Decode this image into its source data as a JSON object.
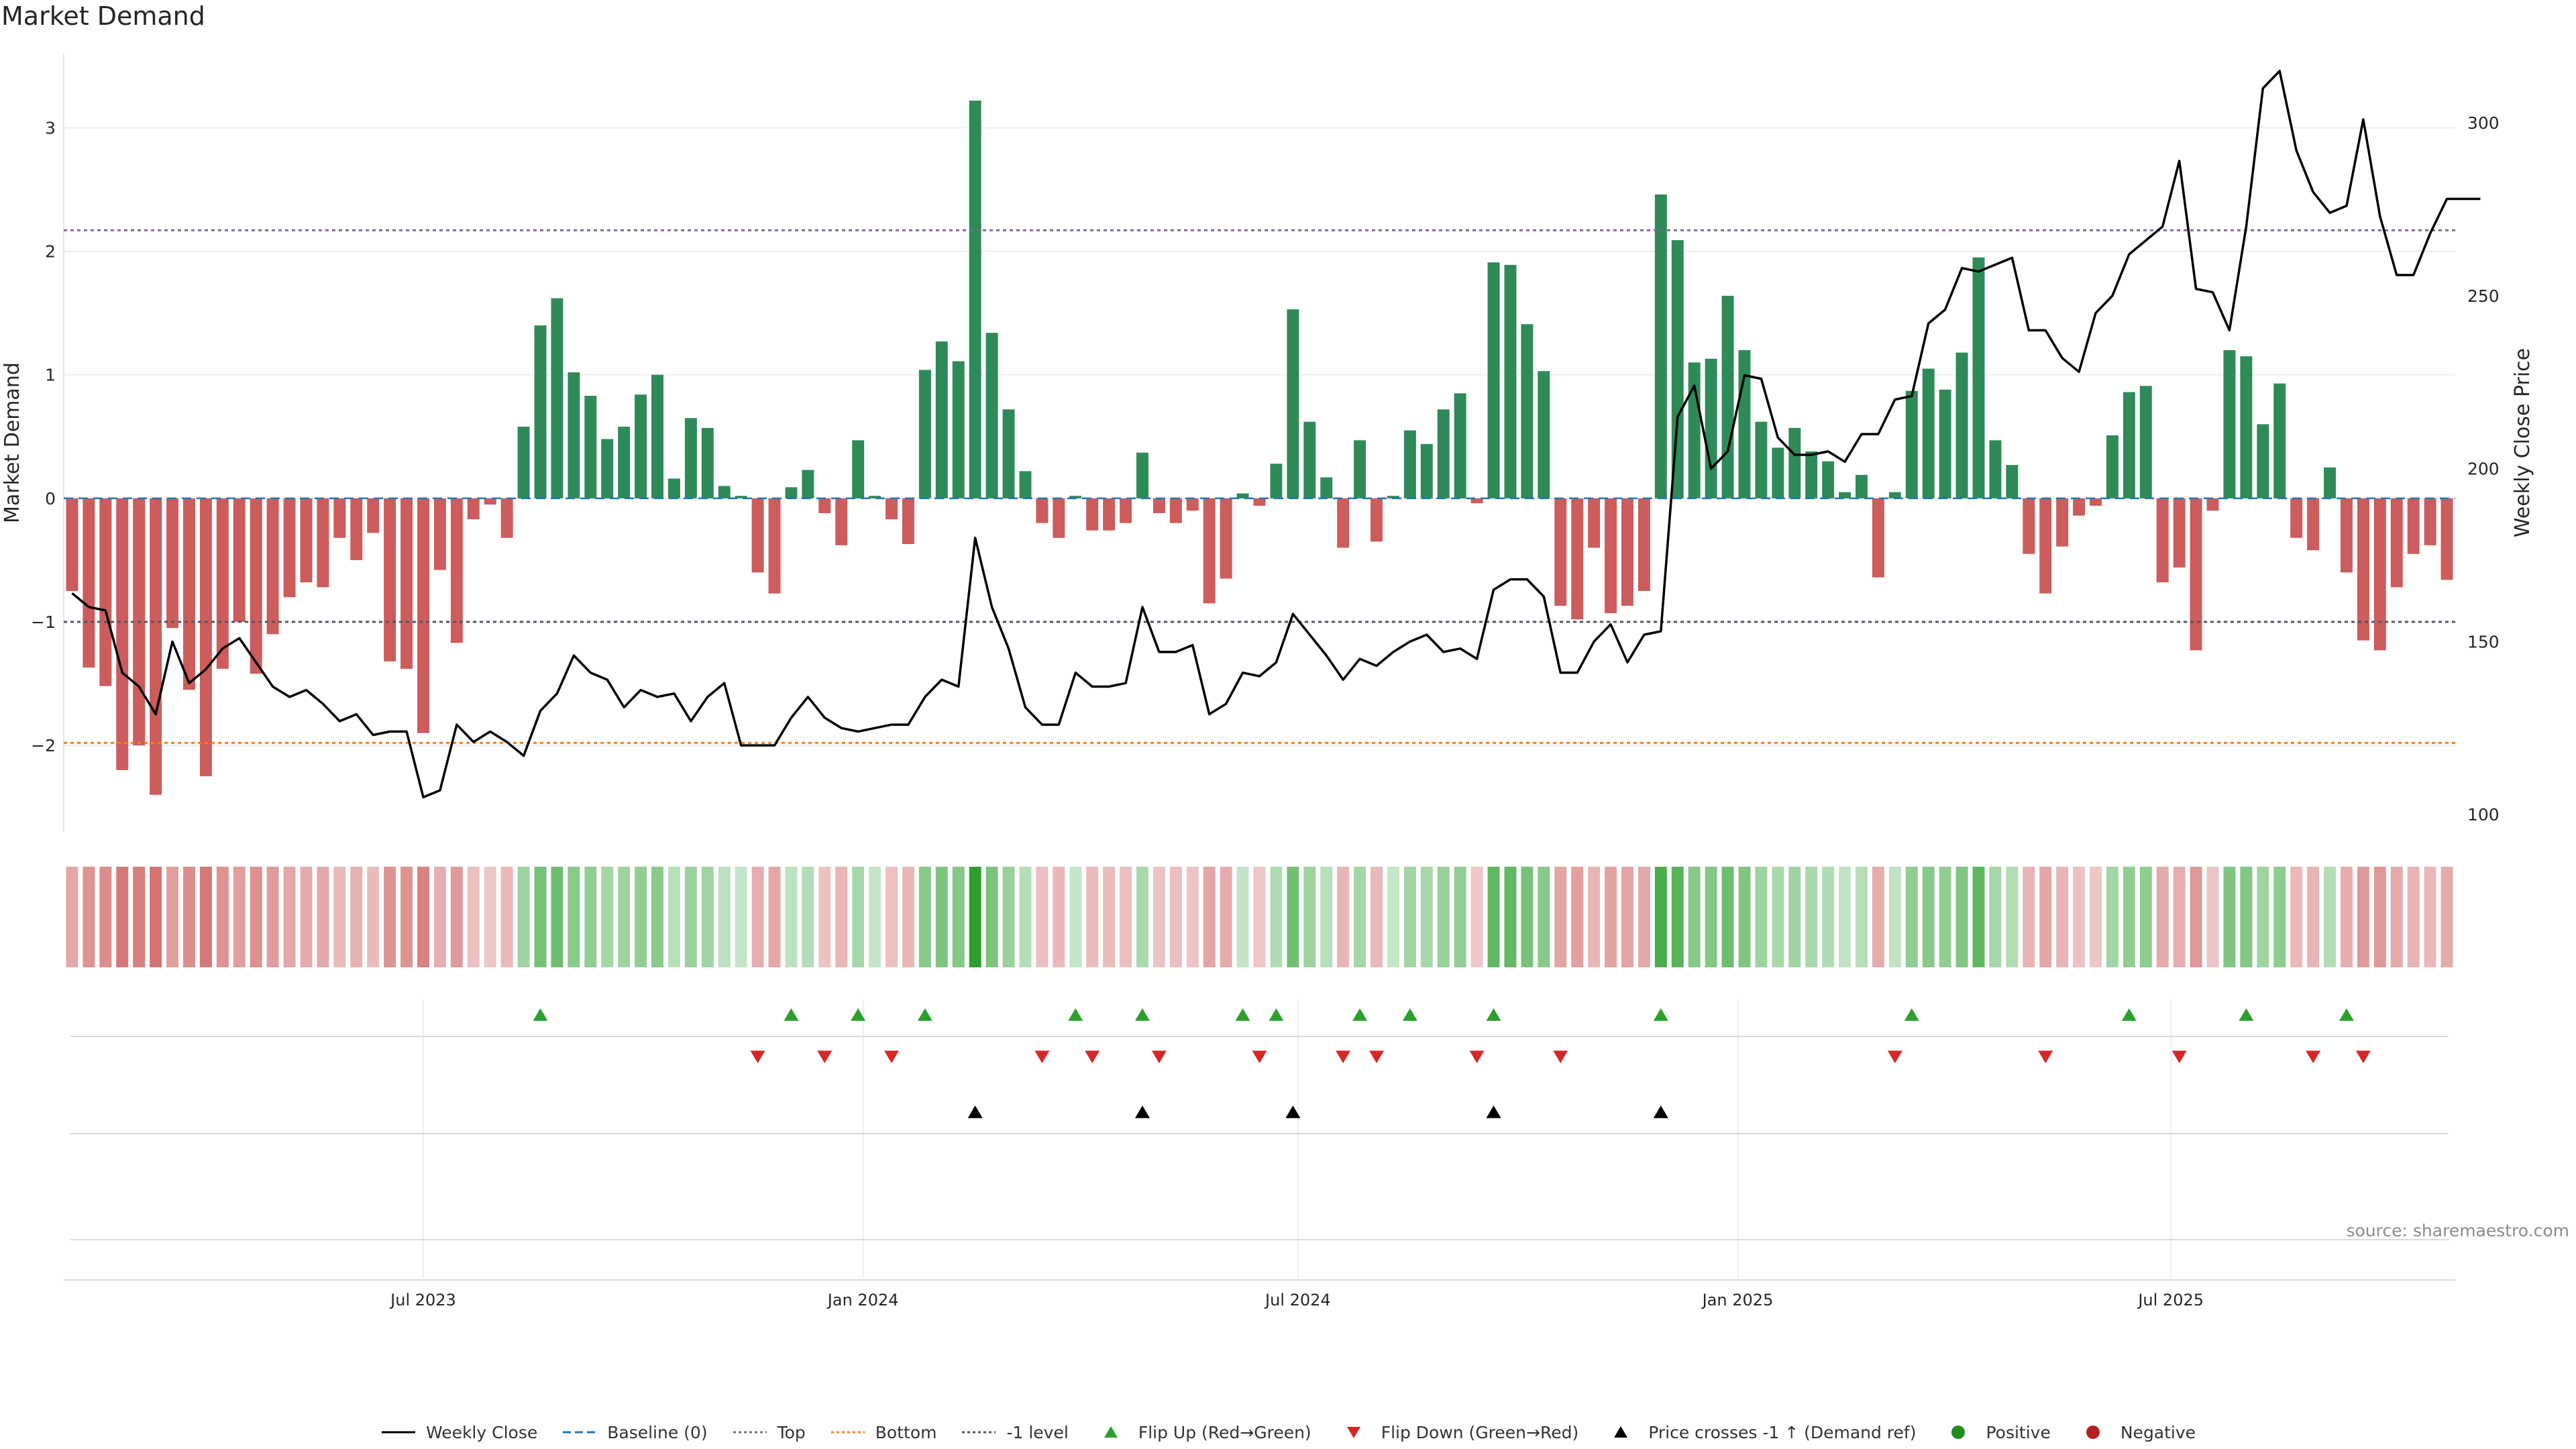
{
  "title": "Market Demand",
  "source": "source: sharemaestro.com",
  "colors": {
    "green": "#2e8b57",
    "red": "#cd5c5c",
    "price": "#000000",
    "baseline": "#1f77b4",
    "top": "#8064a2",
    "bottom": "#ff7f0e",
    "minus1": "#555566",
    "flip_up": "#2ca02c",
    "flip_down": "#d62728",
    "cross": "#000000"
  },
  "chart_data": {
    "type": "bar",
    "title": "Market Demand",
    "ylabel": "Market Demand",
    "y2label": "Weekly Close Price",
    "ylim": [
      -2.7,
      3.6
    ],
    "y2lim": [
      95,
      320
    ],
    "yticks": [
      {
        "v": 3,
        "label": "3"
      },
      {
        "v": 2,
        "label": "2"
      },
      {
        "v": 1,
        "label": "1"
      },
      {
        "v": 0,
        "label": "0"
      },
      {
        "v": -1,
        "label": "−1"
      },
      {
        "v": -2,
        "label": "−2"
      }
    ],
    "y2ticks": [
      {
        "v": 300,
        "label": "300"
      },
      {
        "v": 250,
        "label": "250"
      },
      {
        "v": 200,
        "label": "200"
      },
      {
        "v": 150,
        "label": "150"
      },
      {
        "v": 100,
        "label": "100"
      }
    ],
    "xticks": [
      {
        "i": 21,
        "label": "Jul 2023"
      },
      {
        "i": 47.3,
        "label": "Jan 2024"
      },
      {
        "i": 73.3,
        "label": "Jul 2024"
      },
      {
        "i": 99.6,
        "label": "Jan 2025"
      },
      {
        "i": 125.5,
        "label": "Jul 2025"
      }
    ],
    "reference_lines": [
      {
        "name": "Top",
        "value": 2.17
      },
      {
        "name": "Bottom",
        "value": -1.98
      },
      {
        "name": "-1 level",
        "value": -1.0
      }
    ],
    "demand": [
      -0.75,
      -1.37,
      -1.52,
      -2.2,
      -2.0,
      -2.4,
      -1.05,
      -1.55,
      -2.25,
      -1.38,
      -1.0,
      -1.42,
      -1.1,
      -0.8,
      -0.68,
      -0.72,
      -0.32,
      -0.5,
      -0.28,
      -1.32,
      -1.38,
      -1.9,
      -0.58,
      -1.17,
      -0.17,
      -0.05,
      -0.32,
      0.58,
      1.4,
      1.62,
      1.02,
      0.83,
      0.48,
      0.58,
      0.84,
      1.0,
      0.16,
      0.65,
      0.57,
      0.1,
      0.02,
      -0.6,
      -0.77,
      0.09,
      0.23,
      -0.12,
      -0.38,
      0.47,
      0.02,
      -0.17,
      -0.37,
      1.04,
      1.27,
      1.11,
      3.22,
      1.34,
      0.72,
      0.22,
      -0.2,
      -0.32,
      0.02,
      -0.26,
      -0.26,
      -0.2,
      0.37,
      -0.12,
      -0.2,
      -0.1,
      -0.85,
      -0.65,
      0.04,
      -0.06,
      0.28,
      1.53,
      0.62,
      0.17,
      -0.4,
      0.47,
      -0.35,
      0.02,
      0.55,
      0.44,
      0.72,
      0.85,
      -0.04,
      1.91,
      1.89,
      1.41,
      1.03,
      -0.87,
      -0.98,
      -0.4,
      -0.93,
      -0.87,
      -0.75,
      2.46,
      2.09,
      1.1,
      1.13,
      1.64,
      1.2,
      0.62,
      0.41,
      0.57,
      0.38,
      0.3,
      0.05,
      0.19,
      -0.64,
      0.05,
      0.87,
      1.05,
      0.88,
      1.18,
      1.95,
      0.47,
      0.27,
      -0.45,
      -0.77,
      -0.39,
      -0.14,
      -0.06,
      0.51,
      0.86,
      0.91,
      -0.68,
      -0.56,
      -1.23,
      -0.1,
      1.2,
      1.15,
      0.6,
      0.93,
      -0.32,
      -0.42,
      0.25,
      -0.6,
      -1.15,
      -1.23,
      -0.72,
      -0.45,
      -0.38,
      -0.66
    ],
    "weekly_close": [
      164,
      160,
      159,
      141,
      137,
      129,
      150,
      138,
      142,
      148,
      151,
      144,
      137,
      134,
      136,
      132,
      127,
      129,
      123,
      124,
      124,
      105,
      107,
      126,
      121,
      124,
      121,
      117,
      130,
      135,
      146,
      141,
      139,
      131,
      136,
      134,
      135,
      127,
      134,
      138,
      120,
      120,
      120,
      128,
      134,
      128,
      125,
      124,
      125,
      126,
      126,
      134,
      139,
      137,
      180,
      160,
      148,
      131,
      126,
      126,
      141,
      137,
      137,
      138,
      160,
      147,
      147,
      149,
      129,
      132,
      141,
      140,
      144,
      158,
      152,
      146,
      139,
      145,
      143,
      147,
      150,
      152,
      147,
      148,
      145,
      165,
      168,
      168,
      163,
      141,
      141,
      150,
      155,
      144,
      152,
      153,
      215,
      224,
      200,
      205,
      227,
      226,
      209,
      204,
      204,
      205,
      202,
      210,
      210,
      220,
      221,
      242,
      246,
      258,
      257,
      259,
      261,
      240,
      240,
      232,
      228,
      245,
      250,
      262,
      266,
      270,
      289,
      252,
      251,
      240,
      270,
      310,
      315,
      292,
      280,
      274,
      276,
      301,
      273,
      256,
      256,
      268,
      278,
      278,
      278
    ],
    "flip_up": [
      28,
      43,
      47,
      51,
      60,
      64,
      70,
      72,
      77,
      80,
      85,
      95,
      110,
      123,
      130,
      136
    ],
    "flip_down": [
      41,
      45,
      49,
      58,
      61,
      65,
      71,
      76,
      78,
      84,
      89,
      109,
      118,
      126,
      134,
      137
    ],
    "price_crosses": [
      54,
      64,
      73,
      85,
      95
    ]
  },
  "legend": [
    {
      "label": "Weekly Close",
      "kind": "line",
      "color": "#000000"
    },
    {
      "label": "Baseline (0)",
      "kind": "dash",
      "color": "#1f77b4"
    },
    {
      "label": "Top",
      "kind": "dot",
      "color": "#8064a2"
    },
    {
      "label": "Bottom",
      "kind": "dot",
      "color": "#ff7f0e"
    },
    {
      "label": "-1 level",
      "kind": "dot",
      "color": "#555566"
    },
    {
      "label": "Flip Up (Red→Green)",
      "kind": "tri-up",
      "color": "#2ca02c"
    },
    {
      "label": "Flip Down (Green→Red)",
      "kind": "tri-down",
      "color": "#d62728"
    },
    {
      "label": "Price crosses -1 ↑ (Demand ref)",
      "kind": "tri-up",
      "color": "#000000"
    },
    {
      "label": "Positive",
      "kind": "dot-marker",
      "color": "#228b22"
    },
    {
      "label": "Negative",
      "kind": "dot-marker",
      "color": "#b22222"
    }
  ]
}
